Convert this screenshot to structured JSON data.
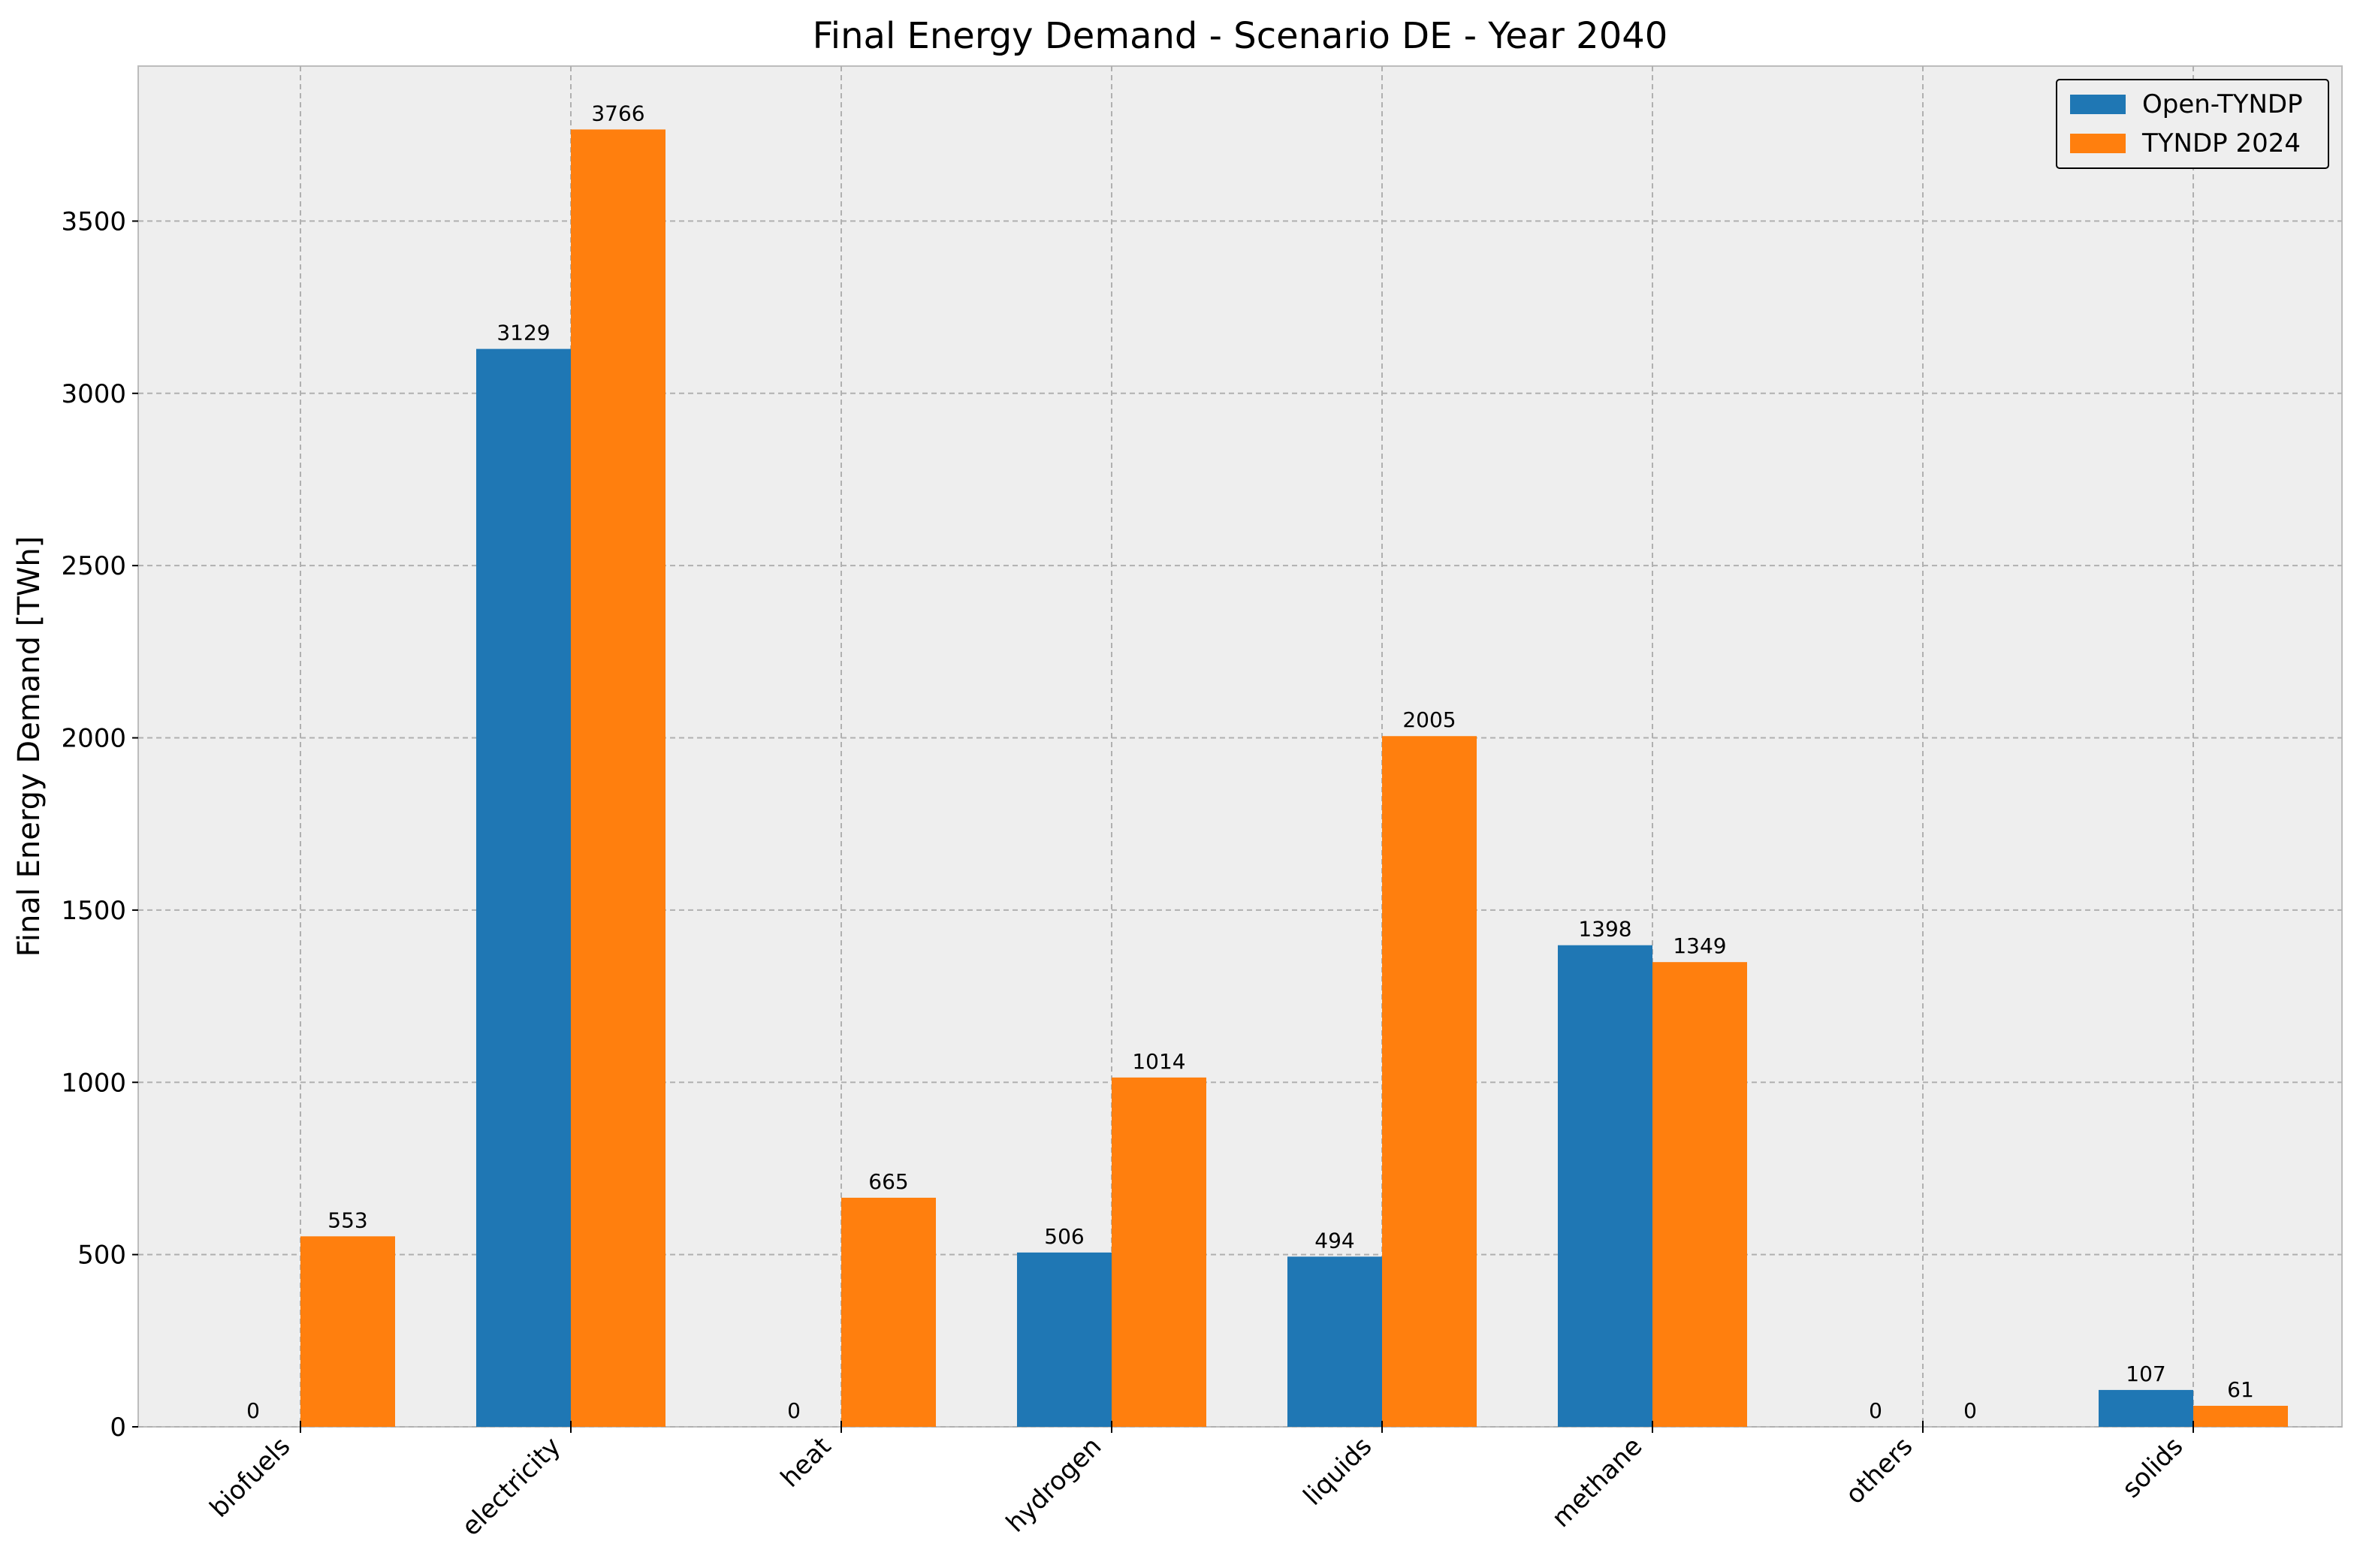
{
  "chart_data": {
    "type": "bar",
    "title": "Final Energy Demand - Scenario DE - Year 2040",
    "xlabel": "",
    "ylabel": "Final Energy Demand [TWh]",
    "categories": [
      "biofuels",
      "electricity",
      "heat",
      "hydrogen",
      "liquids",
      "methane",
      "others",
      "solids"
    ],
    "series": [
      {
        "name": "Open-TYNDP",
        "color": "#1f77b4",
        "values": [
          0,
          3129,
          0,
          506,
          494,
          1398,
          0,
          107
        ]
      },
      {
        "name": "TYNDP 2024",
        "color": "#ff7f0e",
        "values": [
          553,
          3766,
          665,
          1014,
          2005,
          1349,
          0,
          61
        ]
      }
    ],
    "ylim": [
      0,
      3950
    ],
    "yticks": [
      0,
      500,
      1000,
      1500,
      2000,
      2500,
      3000,
      3500
    ],
    "grid": true,
    "legend_position": "top-right",
    "background_color": "#eeeeee",
    "grid_color": "#b0b0b0"
  }
}
